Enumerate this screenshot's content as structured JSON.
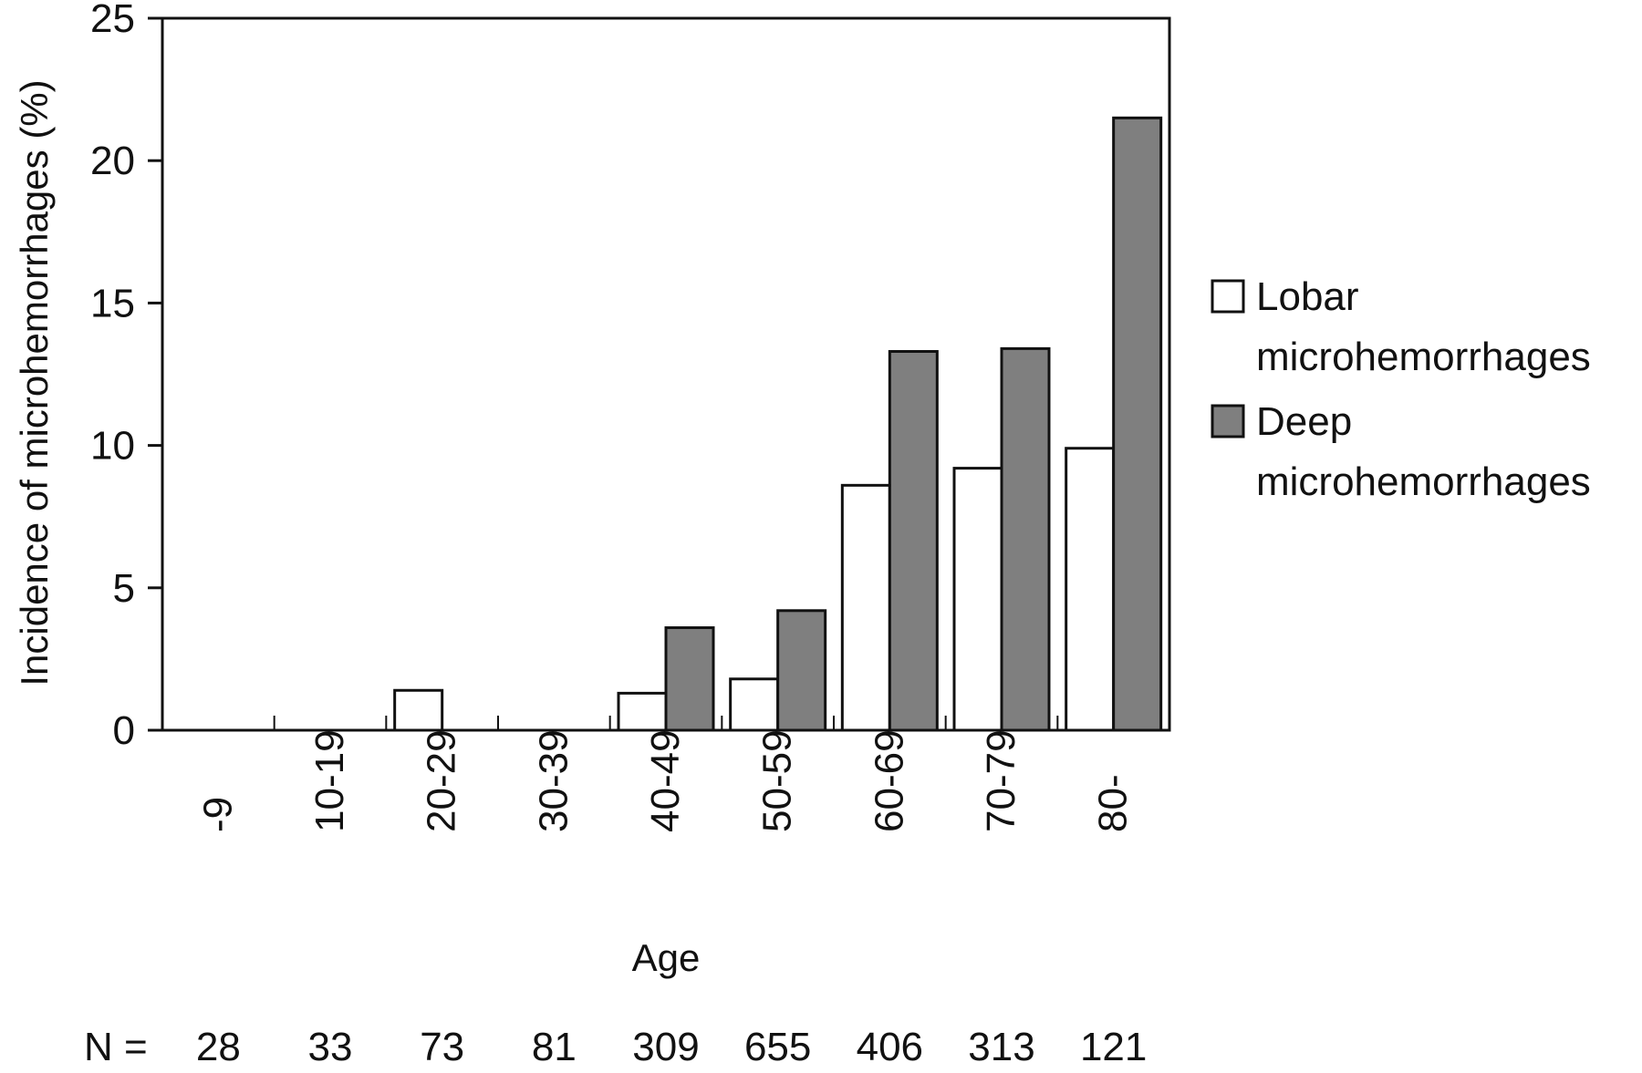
{
  "chart_data": {
    "type": "bar",
    "title": "",
    "xlabel": "Age",
    "ylabel": "Incidence of microhemorrhages (%)",
    "ylim": [
      0,
      25
    ],
    "yticks": [
      "0",
      "5",
      "10",
      "15",
      "20",
      "25"
    ],
    "categories": [
      "-9",
      "10-19",
      "20-29",
      "30-39",
      "40-49",
      "50-59",
      "60-69",
      "70-79",
      "80-"
    ],
    "series": [
      {
        "name": "Lobar microhemorrhages",
        "color": "#ffffff",
        "values": [
          0,
          0,
          1.4,
          0,
          1.3,
          1.8,
          8.6,
          9.2,
          9.9
        ]
      },
      {
        "name": "Deep microhemorrhages",
        "color": "#7f7f7f",
        "values": [
          0,
          0,
          0,
          0,
          3.6,
          4.2,
          13.3,
          13.4,
          21.5
        ]
      }
    ],
    "legend": {
      "position": "right",
      "entries": [
        {
          "line1": "Lobar",
          "line2": "microhemorrhages"
        },
        {
          "line1": "Deep",
          "line2": "microhemorrhages"
        }
      ]
    },
    "n_row": {
      "label": "N =",
      "values": [
        "28",
        "33",
        "73",
        "81",
        "309",
        "655",
        "406",
        "313",
        "121"
      ]
    },
    "grid": false
  }
}
